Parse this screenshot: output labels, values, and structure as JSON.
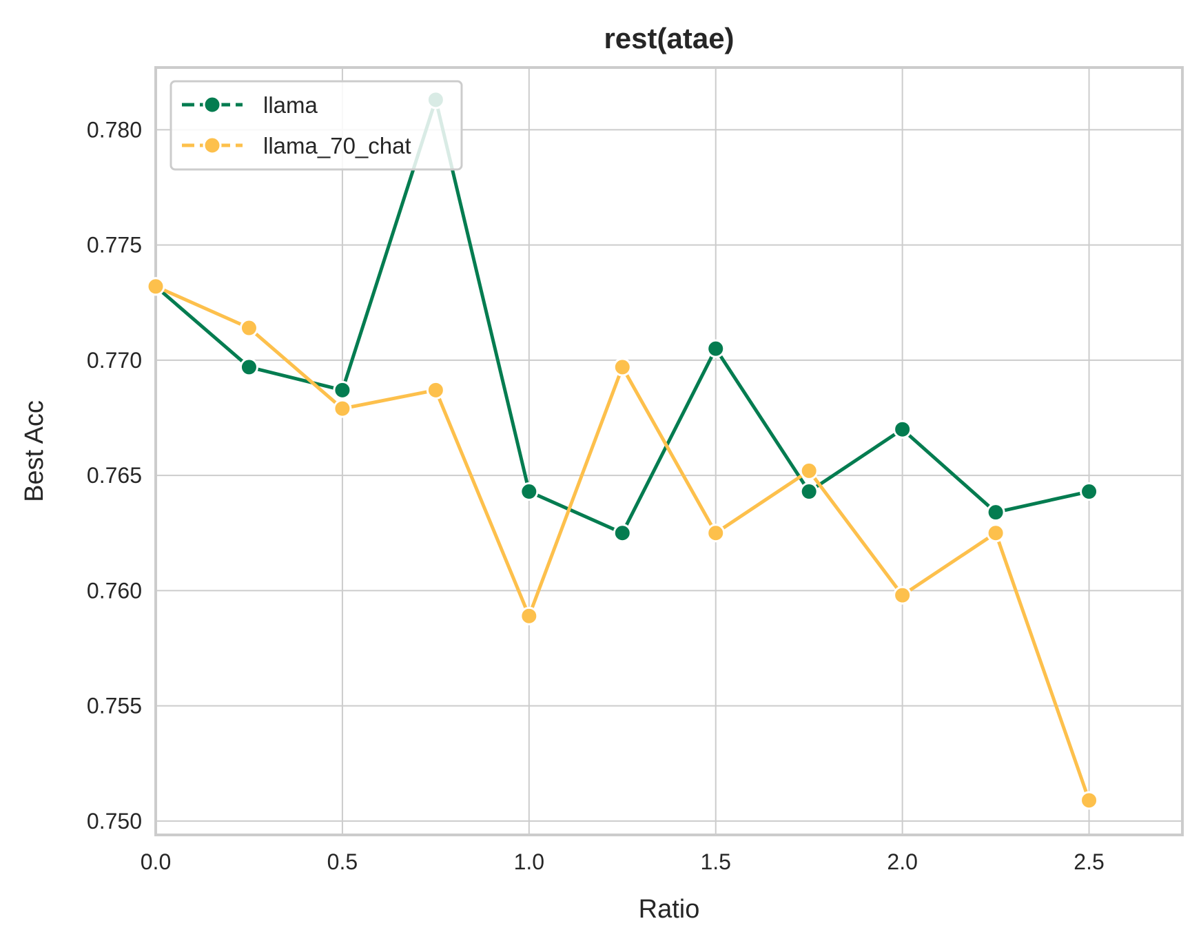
{
  "chart_data": {
    "type": "line",
    "title": "rest(atae)",
    "xlabel": "Ratio",
    "ylabel": "Best Acc",
    "xlim": [
      0.0,
      2.75
    ],
    "ylim": [
      0.7494,
      0.7827
    ],
    "xticks": [
      0.0,
      0.5,
      1.0,
      1.5,
      2.0,
      2.5
    ],
    "xtick_labels": [
      "0.0",
      "0.5",
      "1.0",
      "1.5",
      "2.0",
      "2.5"
    ],
    "yticks": [
      0.75,
      0.755,
      0.76,
      0.765,
      0.77,
      0.775,
      0.78
    ],
    "ytick_labels": [
      "0.750",
      "0.755",
      "0.760",
      "0.765",
      "0.770",
      "0.775",
      "0.780"
    ],
    "grid": true,
    "legend_position": "top-left",
    "x": [
      0.0,
      0.25,
      0.5,
      0.75,
      1.0,
      1.25,
      1.5,
      1.75,
      2.0,
      2.25,
      2.5
    ],
    "series": [
      {
        "name": "llama",
        "color": "#047c50",
        "values": [
          0.7732,
          0.7697,
          0.7687,
          0.7813,
          0.7643,
          0.7625,
          0.7705,
          0.7643,
          0.767,
          0.7634,
          0.7643
        ]
      },
      {
        "name": "llama_70_chat",
        "color": "#fdc04c",
        "values": [
          0.7732,
          0.7714,
          0.7679,
          0.7687,
          0.7589,
          0.7697,
          0.7625,
          0.7652,
          0.7598,
          0.7625,
          0.7509
        ]
      }
    ]
  }
}
